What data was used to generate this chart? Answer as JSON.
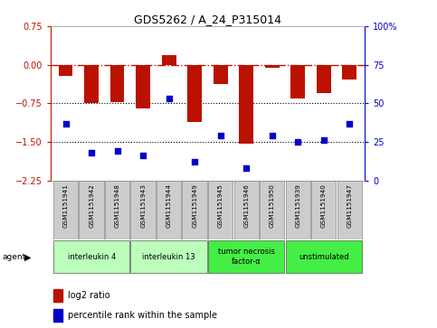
{
  "title": "GDS5262 / A_24_P315014",
  "samples": [
    "GSM1151941",
    "GSM1151942",
    "GSM1151948",
    "GSM1151943",
    "GSM1151944",
    "GSM1151949",
    "GSM1151945",
    "GSM1151946",
    "GSM1151950",
    "GSM1151939",
    "GSM1151940",
    "GSM1151947"
  ],
  "log2_ratio": [
    -0.22,
    -0.75,
    -0.72,
    -0.85,
    0.18,
    -1.12,
    -0.38,
    -1.53,
    -0.05,
    -0.65,
    -0.55,
    -0.28
  ],
  "percentile": [
    37,
    18,
    19,
    16,
    53,
    12,
    29,
    8,
    29,
    25,
    26,
    37
  ],
  "groups": [
    {
      "label": "interleukin 4",
      "indices": [
        0,
        1,
        2
      ],
      "color": "#bbffbb"
    },
    {
      "label": "interleukin 13",
      "indices": [
        3,
        4,
        5
      ],
      "color": "#bbffbb"
    },
    {
      "label": "tumor necrosis\nfactor-α",
      "indices": [
        6,
        7,
        8
      ],
      "color": "#44ee44"
    },
    {
      "label": "unstimulated",
      "indices": [
        9,
        10,
        11
      ],
      "color": "#44ee44"
    }
  ],
  "ylim_left": [
    -2.25,
    0.75
  ],
  "ylim_right": [
    0,
    100
  ],
  "yticks_left": [
    -2.25,
    -1.5,
    -0.75,
    0,
    0.75
  ],
  "yticks_right": [
    0,
    25,
    50,
    75,
    100
  ],
  "bar_color": "#bb1100",
  "dot_color": "#0000cc",
  "background_color": "#ffffff"
}
